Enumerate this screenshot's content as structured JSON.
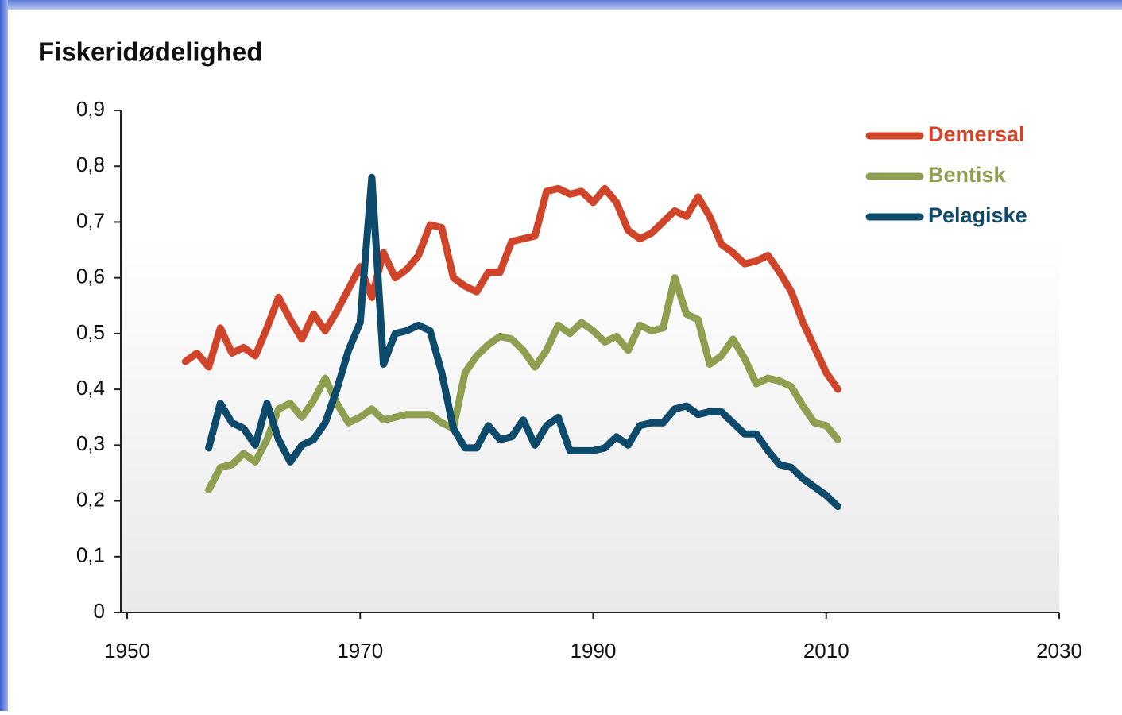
{
  "chart_data": {
    "type": "line",
    "title": "Fiskeridødelighed",
    "x": [
      1955,
      1956,
      1957,
      1958,
      1959,
      1960,
      1961,
      1962,
      1963,
      1964,
      1965,
      1966,
      1967,
      1968,
      1969,
      1970,
      1971,
      1972,
      1973,
      1974,
      1975,
      1976,
      1977,
      1978,
      1979,
      1980,
      1981,
      1982,
      1983,
      1984,
      1985,
      1986,
      1987,
      1988,
      1989,
      1990,
      1991,
      1992,
      1993,
      1994,
      1995,
      1996,
      1997,
      1998,
      1999,
      2000,
      2001,
      2002,
      2003,
      2004,
      2005,
      2006,
      2007,
      2008,
      2009,
      2010,
      2011
    ],
    "series": [
      {
        "name": "Demersal",
        "color": "#d0442a",
        "values": [
          0.45,
          0.465,
          0.44,
          0.51,
          0.465,
          0.475,
          0.46,
          0.51,
          0.565,
          0.525,
          0.49,
          0.535,
          0.505,
          0.54,
          0.58,
          0.62,
          0.565,
          0.645,
          0.6,
          0.615,
          0.64,
          0.695,
          0.69,
          0.6,
          0.585,
          0.575,
          0.61,
          0.61,
          0.665,
          0.67,
          0.675,
          0.755,
          0.76,
          0.75,
          0.755,
          0.735,
          0.76,
          0.735,
          0.685,
          0.67,
          0.68,
          0.7,
          0.72,
          0.71,
          0.745,
          0.71,
          0.66,
          0.645,
          0.625,
          0.63,
          0.64,
          0.61,
          0.575,
          0.52,
          0.475,
          0.43,
          0.4
        ]
      },
      {
        "name": "Bentisk",
        "color": "#8e9f4f",
        "values": [
          null,
          null,
          0.22,
          0.26,
          0.265,
          0.285,
          0.27,
          0.31,
          0.365,
          0.375,
          0.35,
          0.38,
          0.42,
          0.375,
          0.34,
          0.35,
          0.365,
          0.345,
          0.35,
          0.355,
          0.355,
          0.355,
          0.34,
          0.33,
          0.43,
          0.46,
          0.48,
          0.495,
          0.49,
          0.47,
          0.44,
          0.47,
          0.515,
          0.5,
          0.52,
          0.505,
          0.485,
          0.495,
          0.47,
          0.515,
          0.505,
          0.51,
          0.6,
          0.535,
          0.525,
          0.445,
          0.46,
          0.49,
          0.455,
          0.41,
          0.42,
          0.415,
          0.405,
          0.37,
          0.34,
          0.335,
          0.31
        ]
      },
      {
        "name": "Pelagiske",
        "color": "#0d4a6b",
        "values": [
          null,
          null,
          0.295,
          0.375,
          0.34,
          0.33,
          0.3,
          0.375,
          0.31,
          0.27,
          0.3,
          0.31,
          0.34,
          0.4,
          0.47,
          0.52,
          0.78,
          0.445,
          0.5,
          0.505,
          0.515,
          0.505,
          0.43,
          0.33,
          0.295,
          0.295,
          0.335,
          0.31,
          0.315,
          0.345,
          0.3,
          0.335,
          0.35,
          0.29,
          0.29,
          0.29,
          0.295,
          0.315,
          0.3,
          0.335,
          0.34,
          0.34,
          0.365,
          0.37,
          0.355,
          0.36,
          0.36,
          0.34,
          0.32,
          0.32,
          0.29,
          0.265,
          0.26,
          0.24,
          0.225,
          0.21,
          0.19
        ]
      }
    ],
    "xlim": [
      1950,
      2030
    ],
    "xticks": [
      1950,
      1970,
      1990,
      2010,
      2030
    ],
    "ylim": [
      0,
      0.9
    ],
    "yticks": [
      0,
      {
        "value": 0.1,
        "label": "0,1"
      },
      {
        "value": 0.2,
        "label": "0,2"
      },
      {
        "value": 0.3,
        "label": "0,3"
      },
      {
        "value": 0.4,
        "label": "0,4"
      },
      {
        "value": 0.5,
        "label": "0,5"
      },
      {
        "value": 0.6,
        "label": "0,6"
      },
      {
        "value": 0.7,
        "label": "0,7"
      },
      {
        "value": 0.8,
        "label": "0,8"
      },
      {
        "value": 0.9,
        "label": "0,9"
      }
    ],
    "legend": "top-right"
  }
}
